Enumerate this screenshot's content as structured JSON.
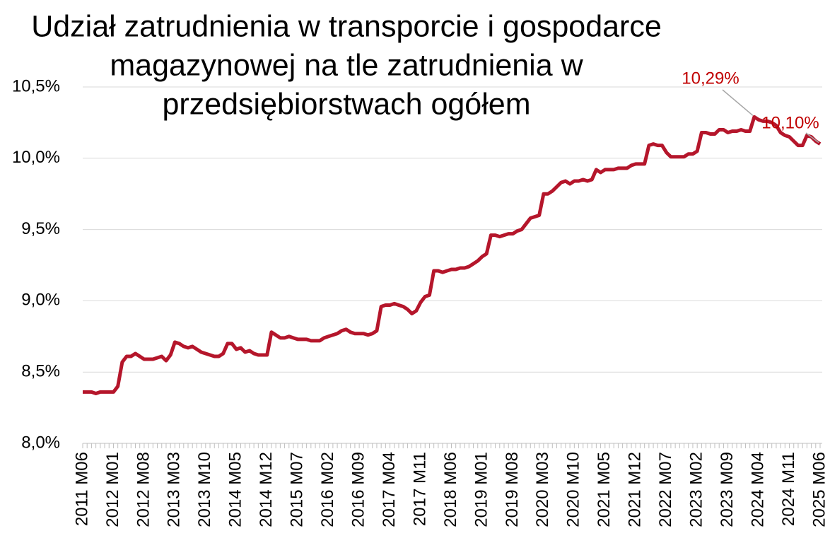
{
  "chart_data": {
    "type": "line",
    "title": [
      "Udział zatrudnienia w transporcie i gospodarce",
      "magazynowej na tle zatrudnienia w",
      "przedsiębiorstwach ogółem"
    ],
    "categories": [
      "2011 M06",
      null,
      null,
      null,
      null,
      null,
      null,
      "2012 M01",
      null,
      null,
      null,
      null,
      null,
      null,
      "2012 M08",
      null,
      null,
      null,
      null,
      null,
      null,
      "2013 M03",
      null,
      null,
      null,
      null,
      null,
      null,
      "2013 M10",
      null,
      null,
      null,
      null,
      null,
      null,
      "2014 M05",
      null,
      null,
      null,
      null,
      null,
      null,
      "2014 M12",
      null,
      null,
      null,
      null,
      null,
      null,
      "2015 M07",
      null,
      null,
      null,
      null,
      null,
      null,
      "2016 M02",
      null,
      null,
      null,
      null,
      null,
      null,
      "2016 M09",
      null,
      null,
      null,
      null,
      null,
      null,
      "2017 M04",
      null,
      null,
      null,
      null,
      null,
      null,
      "2017 M11",
      null,
      null,
      null,
      null,
      null,
      null,
      "2018 M06",
      null,
      null,
      null,
      null,
      null,
      null,
      "2019 M01",
      null,
      null,
      null,
      null,
      null,
      null,
      "2019 M08",
      null,
      null,
      null,
      null,
      null,
      null,
      "2020 M03",
      null,
      null,
      null,
      null,
      null,
      null,
      "2020 M10",
      null,
      null,
      null,
      null,
      null,
      null,
      "2021 M05",
      null,
      null,
      null,
      null,
      null,
      null,
      "2021 M12",
      null,
      null,
      null,
      null,
      null,
      null,
      "2022 M07",
      null,
      null,
      null,
      null,
      null,
      null,
      "2023 M02",
      null,
      null,
      null,
      null,
      null,
      null,
      "2023 M09",
      null,
      null,
      null,
      null,
      null,
      null,
      "2024 M04",
      null,
      null,
      null,
      null,
      null,
      null,
      "2024 M11",
      null,
      null,
      null,
      null,
      null,
      null,
      "2025 M06"
    ],
    "series": [
      {
        "color": "#b5162b",
        "values": [
          8.36,
          8.36,
          8.36,
          8.35,
          8.36,
          8.36,
          8.36,
          8.36,
          8.4,
          8.57,
          8.61,
          8.61,
          8.63,
          8.61,
          8.59,
          8.59,
          8.59,
          8.6,
          8.61,
          8.58,
          8.62,
          8.71,
          8.7,
          8.68,
          8.67,
          8.68,
          8.66,
          8.64,
          8.63,
          8.62,
          8.61,
          8.61,
          8.63,
          8.7,
          8.7,
          8.66,
          8.67,
          8.64,
          8.65,
          8.63,
          8.62,
          8.62,
          8.62,
          8.78,
          8.76,
          8.74,
          8.74,
          8.75,
          8.74,
          8.73,
          8.73,
          8.73,
          8.72,
          8.72,
          8.72,
          8.74,
          8.75,
          8.76,
          8.77,
          8.79,
          8.8,
          8.78,
          8.77,
          8.77,
          8.77,
          8.76,
          8.77,
          8.79,
          8.96,
          8.97,
          8.97,
          8.98,
          8.97,
          8.96,
          8.94,
          8.91,
          8.93,
          8.99,
          9.03,
          9.04,
          9.21,
          9.21,
          9.2,
          9.21,
          9.22,
          9.22,
          9.23,
          9.23,
          9.24,
          9.26,
          9.28,
          9.31,
          9.33,
          9.46,
          9.46,
          9.45,
          9.46,
          9.47,
          9.47,
          9.49,
          9.5,
          9.54,
          9.58,
          9.59,
          9.6,
          9.75,
          9.75,
          9.77,
          9.8,
          9.83,
          9.84,
          9.82,
          9.84,
          9.84,
          9.85,
          9.84,
          9.85,
          9.92,
          9.9,
          9.92,
          9.92,
          9.92,
          9.93,
          9.93,
          9.93,
          9.95,
          9.96,
          9.96,
          9.96,
          10.09,
          10.1,
          10.09,
          10.09,
          10.04,
          10.01,
          10.01,
          10.01,
          10.01,
          10.03,
          10.03,
          10.05,
          10.18,
          10.18,
          10.17,
          10.17,
          10.2,
          10.2,
          10.18,
          10.19,
          10.19,
          10.2,
          10.19,
          10.19,
          10.29,
          10.27,
          10.26,
          10.26,
          10.25,
          10.23,
          10.18,
          10.16,
          10.15,
          10.12,
          10.09,
          10.09,
          10.16,
          10.15,
          10.12,
          10.1
        ],
        "value_labels": [
          null,
          null,
          null,
          null,
          null,
          null,
          null,
          null,
          null,
          null,
          null,
          null,
          null,
          null,
          null,
          null,
          null,
          null,
          null,
          null,
          null,
          null,
          null,
          null,
          null,
          null,
          null,
          null,
          null,
          null,
          null,
          null,
          null,
          null,
          null,
          null,
          null,
          null,
          null,
          null,
          null,
          null,
          null,
          null,
          null,
          null,
          null,
          null,
          null,
          null,
          null,
          null,
          null,
          null,
          null,
          null,
          null,
          null,
          null,
          null,
          null,
          null,
          null,
          null,
          null,
          null,
          null,
          null,
          null,
          null,
          null,
          null,
          null,
          null,
          null,
          null,
          null,
          null,
          null,
          null,
          null,
          null,
          null,
          null,
          null,
          null,
          null,
          null,
          null,
          null,
          null,
          null,
          null,
          null,
          null,
          null,
          null,
          null,
          null,
          null,
          null,
          null,
          null,
          null,
          null,
          null,
          null,
          null,
          null,
          null,
          null,
          null,
          null,
          null,
          null,
          null,
          null,
          null,
          null,
          null,
          null,
          null,
          null,
          null,
          null,
          null,
          null,
          null,
          null,
          null,
          null,
          null,
          null,
          null,
          null,
          null,
          null,
          null,
          null,
          null,
          null,
          null,
          null,
          null,
          null,
          null,
          null,
          null,
          null,
          null,
          null,
          null,
          null,
          "10,29%",
          null,
          null,
          null,
          null,
          null,
          null,
          null,
          null,
          null,
          null,
          null,
          null,
          null,
          null,
          "10,10%"
        ]
      }
    ],
    "ylim": [
      8.0,
      10.5
    ],
    "yticks": [
      {
        "value": 8.0,
        "label": "8,0%"
      },
      {
        "value": 8.5,
        "label": "8,5%"
      },
      {
        "value": 9.0,
        "label": "9,0%"
      },
      {
        "value": 9.5,
        "label": "9,5%"
      },
      {
        "value": 10.0,
        "label": "10,0%"
      },
      {
        "value": 10.5,
        "label": "10,5%"
      }
    ],
    "grid": true
  }
}
